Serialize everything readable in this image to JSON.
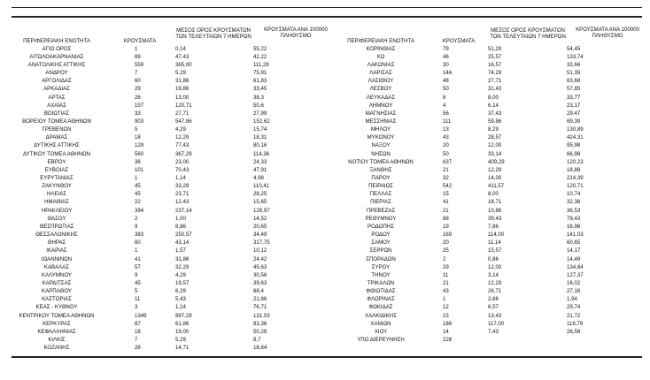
{
  "headers": {
    "region": "ΠΕΡΙΦΕΡΕΙΑΚΗ ΕΝΟΤΗΤΑ",
    "cases": "ΚΡΟΥΣΜΑΤΑ",
    "avg7_line1": "ΜΕΣΟΣ ΟΡΟΣ ΚΡΟΥΣΜΑΤΩΝ",
    "avg7_line2": "ΤΩΝ ΤΕΛΕΥΤΑΙΩΝ 7 ΗΜΕΡΩΝ",
    "per100k_line1": "ΚΡΟΥΣΜΑΤΑ ΑΝΑ 100000",
    "per100k_line2": "ΠΛΗΘΥΣΜΟ"
  },
  "left_rows": [
    {
      "region": "ΑΓΙΟ ΟΡΟΣ",
      "cases": "1",
      "avg7": "0,14",
      "per100k": "55,22"
    },
    {
      "region": "ΑΙΤΩΛΟΑΚΑΡΝΑΝΙΑΣ",
      "cases": "89",
      "avg7": "47,43",
      "per100k": "42,22"
    },
    {
      "region": "ΑΝΑΤΟΛΙΚΗΣ ΑΤΤΙΚΗΣ",
      "cases": "559",
      "avg7": "365,00",
      "per100k": "111,28"
    },
    {
      "region": "ΑΝΔΡΟΥ",
      "cases": "7",
      "avg7": "5,29",
      "per100k": "75,91"
    },
    {
      "region": "ΑΡΓΟΛΙΔΑΣ",
      "cases": "60",
      "avg7": "31,86",
      "per100k": "61,83"
    },
    {
      "region": "ΑΡΚΑΔΙΑΣ",
      "cases": "29",
      "avg7": "19,86",
      "per100k": "33,45"
    },
    {
      "region": "ΑΡΤΑΣ",
      "cases": "26",
      "avg7": "13,00",
      "per100k": "38,3"
    },
    {
      "region": "ΑΧΑΪΑΣ",
      "cases": "157",
      "avg7": "120,71",
      "per100k": "50,6"
    },
    {
      "region": "ΒΟΙΩΤΙΑΣ",
      "cases": "33",
      "avg7": "27,71",
      "per100k": "27,99"
    },
    {
      "region": "ΒΟΡΕΙΟΥ ΤΟΜΕΑ ΑΘΗΝΩΝ",
      "cases": "903",
      "avg7": "547,86",
      "per100k": "152,62"
    },
    {
      "region": "ΓΡΕΒΕΝΩΝ",
      "cases": "5",
      "avg7": "4,29",
      "per100k": "15,74"
    },
    {
      "region": "ΔΡΑΜΑΣ",
      "cases": "18",
      "avg7": "12,29",
      "per100k": "18,31"
    },
    {
      "region": "ΔΥΤΙΚΗΣ ΑΤΤΙΚΗΣ",
      "cases": "129",
      "avg7": "77,43",
      "per100k": "80,16"
    },
    {
      "region": "ΔΥΤΙΚΟΥ ΤΟΜΕΑ ΑΘΗΝΩΝ",
      "cases": "560",
      "avg7": "367,29",
      "per100k": "114,36"
    },
    {
      "region": "ΕΒΡΟΥ",
      "cases": "36",
      "avg7": "23,00",
      "per100k": "24,33"
    },
    {
      "region": "ΕΥΒΟΙΑΣ",
      "cases": "101",
      "avg7": "70,43",
      "per100k": "47,91"
    },
    {
      "region": "ΕΥΡΥΤΑΝΙΑΣ",
      "cases": "1",
      "avg7": "1,14",
      "per100k": "4,98"
    },
    {
      "region": "ΖΑΚΥΝΘΟΥ",
      "cases": "45",
      "avg7": "33,29",
      "per100k": "110,41"
    },
    {
      "region": "ΗΛΕΙΑΣ",
      "cases": "45",
      "avg7": "23,71",
      "per100k": "28,25"
    },
    {
      "region": "ΗΜΑΘΙΑΣ",
      "cases": "22",
      "avg7": "12,43",
      "per100k": "15,65"
    },
    {
      "region": "ΗΡΑΚΛΕΙΟΥ",
      "cases": "394",
      "avg7": "237,14",
      "per100k": "128,97"
    },
    {
      "region": "ΘΑΣΟΥ",
      "cases": "2",
      "avg7": "1,00",
      "per100k": "14,52"
    },
    {
      "region": "ΘΕΣΠΡΩΤΙΑΣ",
      "cases": "9",
      "avg7": "8,86",
      "per100k": "20,65"
    },
    {
      "region": "ΘΕΣΣΑΛΟΝΙΚΗΣ",
      "cases": "383",
      "avg7": "250,57",
      "per100k": "34,49"
    },
    {
      "region": "ΘΗΡΑΣ",
      "cases": "60",
      "avg7": "43,14",
      "per100k": "317,75"
    },
    {
      "region": "ΙΚΑΡΙΑΣ",
      "cases": "1",
      "avg7": "1,57",
      "per100k": "10,12"
    },
    {
      "region": "ΙΩΑΝΝΙΝΩΝ",
      "cases": "41",
      "avg7": "31,86",
      "per100k": "24,42"
    },
    {
      "region": "ΚΑΒΑΛΑΣ",
      "cases": "57",
      "avg7": "32,29",
      "per100k": "45,63"
    },
    {
      "region": "ΚΑΛΥΜΝΟΥ",
      "cases": "9",
      "avg7": "4,29",
      "per100k": "30,56"
    },
    {
      "region": "ΚΑΡΔΙΤΣΑΣ",
      "cases": "45",
      "avg7": "19,57",
      "per100k": "39,63"
    },
    {
      "region": "ΚΑΡΠΑΘΟΥ",
      "cases": "5",
      "avg7": "6,29",
      "per100k": "68,4"
    },
    {
      "region": "ΚΑΣΤΟΡΙΑΣ",
      "cases": "11",
      "avg7": "5,43",
      "per100k": "21,86"
    },
    {
      "region": "ΚΕΑΣ - ΚΥΘΝΟΥ",
      "cases": "3",
      "avg7": "1,14",
      "per100k": "76,71"
    },
    {
      "region": "ΚΕΝΤΡΙΚΟΥ ΤΟΜΕΑ ΑΘΗΝΩΝ",
      "cases": "1349",
      "avg7": "897,29",
      "per100k": "131,03"
    },
    {
      "region": "ΚΕΡΚΥΡΑΣ",
      "cases": "87",
      "avg7": "61,86",
      "per100k": "83,36"
    },
    {
      "region": "ΚΕΦΑΛΛΗΝΙΑΣ",
      "cases": "18",
      "avg7": "19,00",
      "per100k": "50,28"
    },
    {
      "region": "ΚΙΛΚΙΣ",
      "cases": "7",
      "avg7": "5,29",
      "per100k": "8,7"
    },
    {
      "region": "ΚΟΖΑΝΗΣ",
      "cases": "28",
      "avg7": "14,71",
      "per100k": "18,64"
    }
  ],
  "right_rows": [
    {
      "region": "ΚΟΡΙΝΘΙΑΣ",
      "cases": "79",
      "avg7": "51,29",
      "per100k": "54,45"
    },
    {
      "region": "ΚΩ",
      "cases": "46",
      "avg7": "25,57",
      "per100k": "133,74"
    },
    {
      "region": "ΛΑΚΩΝΙΑΣ",
      "cases": "30",
      "avg7": "16,57",
      "per100k": "33,66"
    },
    {
      "region": "ΛΑΡΙΣΑΣ",
      "cases": "146",
      "avg7": "74,29",
      "per100k": "51,35"
    },
    {
      "region": "ΛΑΣΙΘΙΟΥ",
      "cases": "48",
      "avg7": "27,71",
      "per100k": "63,68"
    },
    {
      "region": "ΛΕΣΒΟΥ",
      "cases": "50",
      "avg7": "31,43",
      "per100k": "57,85"
    },
    {
      "region": "ΛΕΥΚΑΔΑΣ",
      "cases": "8",
      "avg7": "8,00",
      "per100k": "33,77"
    },
    {
      "region": "ΛΗΜΝΟΥ",
      "cases": "4",
      "avg7": "6,14",
      "per100k": "23,17"
    },
    {
      "region": "ΜΑΓΝΗΣΙΑΣ",
      "cases": "56",
      "avg7": "37,43",
      "per100k": "29,47"
    },
    {
      "region": "ΜΕΣΣΗΝΙΑΣ",
      "cases": "111",
      "avg7": "59,86",
      "per100k": "69,39"
    },
    {
      "region": "ΜΗΛΟΥ",
      "cases": "13",
      "avg7": "8,29",
      "per100k": "130,89"
    },
    {
      "region": "ΜΥΚΟΝΟΥ",
      "cases": "43",
      "avg7": "28,57",
      "per100k": "424,31"
    },
    {
      "region": "ΝΑΞΟΥ",
      "cases": "20",
      "avg7": "12,00",
      "per100k": "95,98"
    },
    {
      "region": "ΝΗΣΩΝ",
      "cases": "50",
      "avg7": "33,14",
      "per100k": "66,98"
    },
    {
      "region": "ΝΟΤΙΟΥ ΤΟΜΕΑ ΑΘΗΝΩΝ",
      "cases": "637",
      "avg7": "409,29",
      "per100k": "120,23"
    },
    {
      "region": "ΞΑΝΘΗΣ",
      "cases": "21",
      "avg7": "12,29",
      "per100k": "18,88"
    },
    {
      "region": "ΠΑΡΟΥ",
      "cases": "32",
      "avg7": "14,00",
      "per100k": "214,39"
    },
    {
      "region": "ΠΕΙΡΑΙΩΣ",
      "cases": "542",
      "avg7": "411,57",
      "per100k": "120,71"
    },
    {
      "region": "ΠΕΛΛΑΣ",
      "cases": "15",
      "avg7": "8,00",
      "per100k": "10,74"
    },
    {
      "region": "ΠΙΕΡΙΑΣ",
      "cases": "41",
      "avg7": "18,71",
      "per100k": "32,36"
    },
    {
      "region": "ΠΡΕΒΕΖΑΣ",
      "cases": "21",
      "avg7": "10,86",
      "per100k": "36,53"
    },
    {
      "region": "ΡΕΘΥΜΝΟΥ",
      "cases": "68",
      "avg7": "39,43",
      "per100k": "79,43"
    },
    {
      "region": "ΡΟΔΟΠΗΣ",
      "cases": "19",
      "avg7": "7,86",
      "per100k": "16,96"
    },
    {
      "region": "ΡΟΔΟΥ",
      "cases": "169",
      "avg7": "114,00",
      "per100k": "141,03"
    },
    {
      "region": "ΣΑΜΟΥ",
      "cases": "20",
      "avg7": "11,14",
      "per100k": "60,65"
    },
    {
      "region": "ΣΕΡΡΩΝ",
      "cases": "25",
      "avg7": "15,57",
      "per100k": "14,17"
    },
    {
      "region": "ΣΠΟΡΑΔΩΝ",
      "cases": "2",
      "avg7": "0,86",
      "per100k": "14,49"
    },
    {
      "region": "ΣΥΡΟΥ",
      "cases": "29",
      "avg7": "12,00",
      "per100k": "134,84"
    },
    {
      "region": "ΤΗΝΟΥ",
      "cases": "11",
      "avg7": "3,14",
      "per100k": "127,37"
    },
    {
      "region": "ΤΡΙΚΑΛΩΝ",
      "cases": "21",
      "avg7": "12,29",
      "per100k": "16,02"
    },
    {
      "region": "ΦΘΙΩΤΙΔΑΣ",
      "cases": "43",
      "avg7": "26,71",
      "per100k": "27,18"
    },
    {
      "region": "ΦΛΩΡΙΝΑΣ",
      "cases": "1",
      "avg7": "2,86",
      "per100k": "1,94"
    },
    {
      "region": "ΦΩΚΙΔΑΣ",
      "cases": "12",
      "avg7": "6,57",
      "per100k": "29,74"
    },
    {
      "region": "ΧΑΛΚΙΔΙΚΗΣ",
      "cases": "23",
      "avg7": "13,43",
      "per100k": "21,72"
    },
    {
      "region": "ΧΑΝΙΩΝ",
      "cases": "186",
      "avg7": "117,00",
      "per100k": "118,79"
    },
    {
      "region": "ΧΙΟΥ",
      "cases": "14",
      "avg7": "7,43",
      "per100k": "26,58"
    },
    {
      "region": "ΥΠΟ ΔΙΕΡΕΥΝΗΣΗ",
      "cases": "228",
      "avg7": "",
      "per100k": ""
    }
  ]
}
